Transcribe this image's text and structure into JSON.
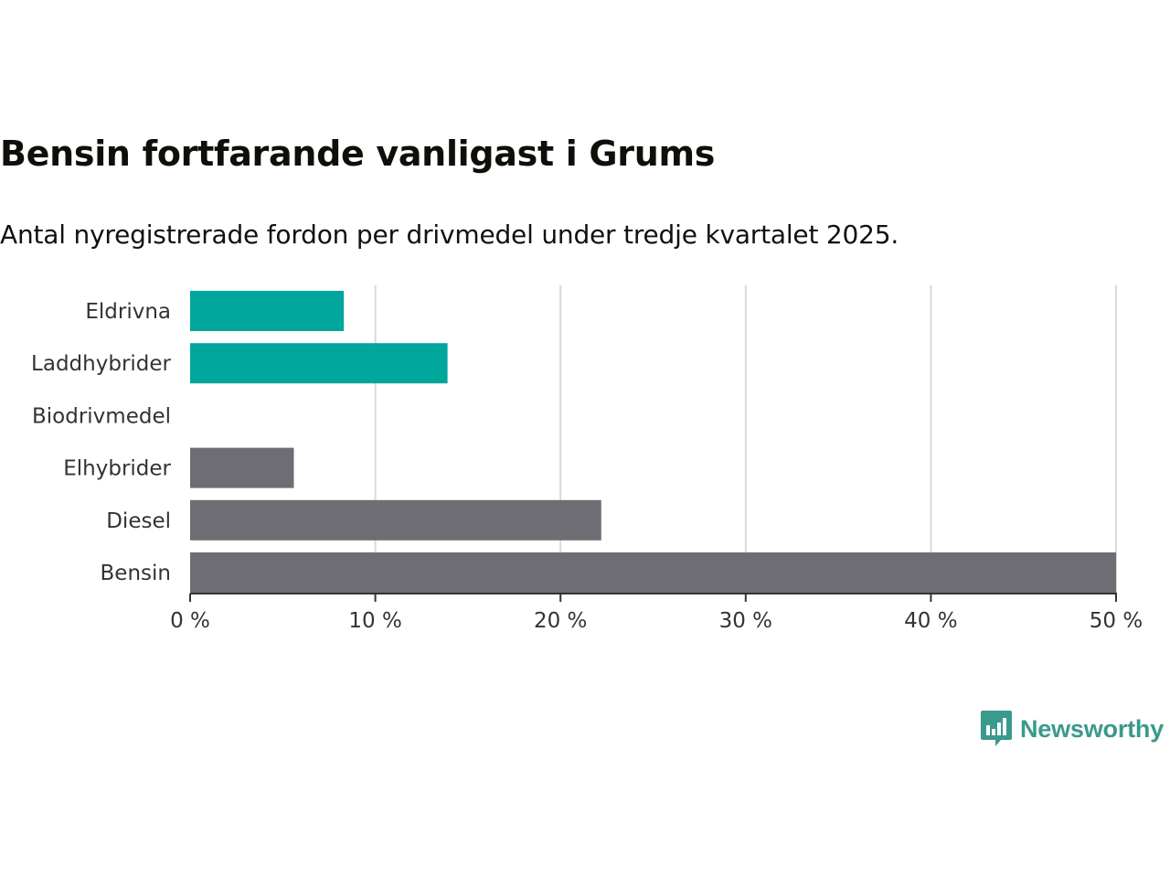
{
  "header": {
    "title": "Bensin fortfarande vanligast i Grums",
    "subtitle": "Antal nyregistrerade fordon per drivmedel under tredje kvartalet 2025."
  },
  "brand": {
    "name": "Newsworthy",
    "icon": "newsworthy-logo-icon",
    "color": "#3a9a8c"
  },
  "colors": {
    "highlight": "#00a59b",
    "default": "#6e6d73",
    "grid": "#d9d9d9",
    "axis": "#333333"
  },
  "chart_data": {
    "type": "bar",
    "orientation": "horizontal",
    "categories": [
      "Eldrivna",
      "Laddhybrider",
      "Biodrivmedel",
      "Elhybrider",
      "Diesel",
      "Bensin"
    ],
    "values": [
      8.3,
      13.9,
      0,
      5.6,
      22.2,
      50.0
    ],
    "highlighted": [
      true,
      true,
      false,
      false,
      false,
      false
    ],
    "xticks": [
      "0 %",
      "10 %",
      "20 %",
      "30 %",
      "40 %",
      "50 %"
    ],
    "tick_values": [
      0,
      10,
      20,
      30,
      40,
      50
    ],
    "xlim": [
      0,
      50
    ],
    "title": "Bensin fortfarande vanligast i Grums",
    "xlabel": "",
    "ylabel": "",
    "grid": true
  }
}
